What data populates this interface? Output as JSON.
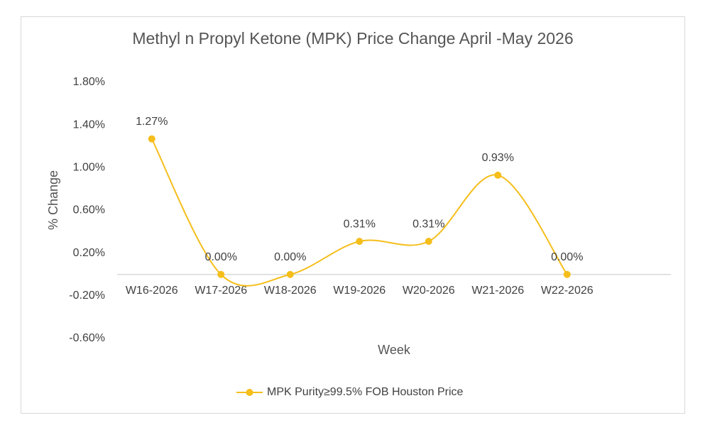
{
  "chart_data": {
    "type": "line",
    "title": "Methyl n Propyl Ketone  (MPK) Price Change April -May 2026",
    "x_label": "Week",
    "y_label": "% Change",
    "categories": [
      "W16-2026",
      "W17-2026",
      "W18-2026",
      "W19-2026",
      "W20-2026",
      "W21-2026",
      "W22-2026"
    ],
    "series": [
      {
        "name": "MPK Purity≥99.5% FOB Houston Price",
        "color": "#F5BE1B",
        "values": [
          1.27,
          0,
          0,
          0.31,
          0.31,
          0.93,
          0
        ],
        "value_labels": [
          "1.27%",
          "0.00%",
          "0.00%",
          "0.31%",
          "0.31%",
          "0.93%",
          "0.00%"
        ]
      }
    ],
    "ylim": [
      -0.6,
      1.8
    ],
    "yticks": [
      {
        "value": 1.8,
        "label": "1.80%"
      },
      {
        "value": 1.4,
        "label": "1.40%"
      },
      {
        "value": 1.0,
        "label": "1.00%"
      },
      {
        "value": 0.6,
        "label": "0.60%"
      },
      {
        "value": 0.2,
        "label": "0.20%"
      },
      {
        "value": -0.2,
        "label": "-0.20%"
      },
      {
        "value": -0.6,
        "label": "-0.60%"
      }
    ],
    "grid": false,
    "smooth": true,
    "legend": "bottom"
  }
}
